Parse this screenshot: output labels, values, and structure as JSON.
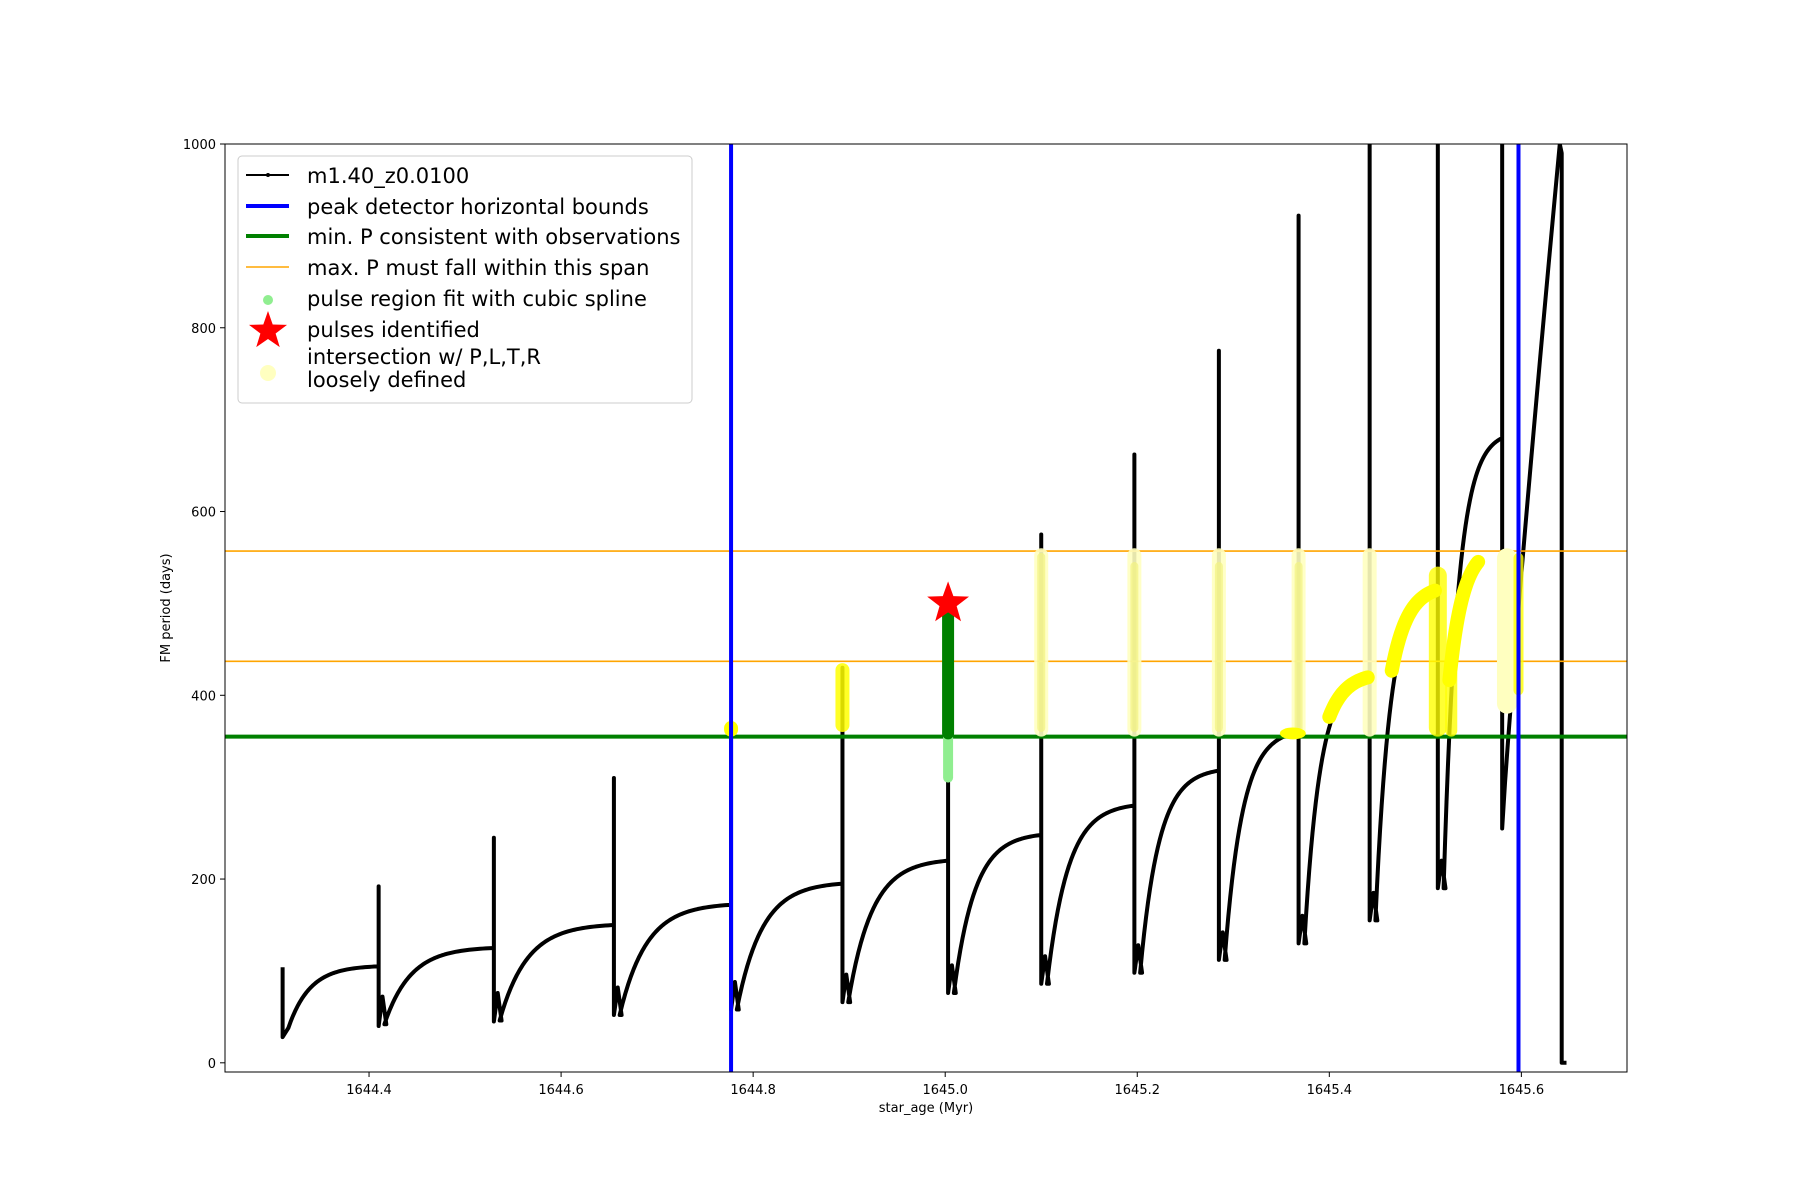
{
  "chart_data": {
    "type": "line",
    "title": "",
    "xlabel": "star_age (Myr)",
    "ylabel": "FM period (days)",
    "xlim": [
      1644.25,
      1645.71
    ],
    "ylim": [
      -10,
      1000
    ],
    "x_ticks": [
      "1644.4",
      "1644.6",
      "1644.8",
      "1645.0",
      "1645.2",
      "1645.4",
      "1645.6"
    ],
    "y_ticks": [
      "0",
      "200",
      "400",
      "600",
      "800",
      "1000"
    ],
    "grid": false,
    "legend_position": "upper-left",
    "legend": [
      {
        "key": "track",
        "label": "m1.40_z0.0100",
        "color": "#000000"
      },
      {
        "key": "bounds",
        "label": "peak detector horizontal bounds",
        "color": "#0000ff"
      },
      {
        "key": "minp",
        "label": "min. P consistent with observations",
        "color": "#008000"
      },
      {
        "key": "maxp",
        "label": "max. P must fall within this span",
        "color": "#ffa500"
      },
      {
        "key": "spline",
        "label": "pulse region fit with cubic spline",
        "color": "#90ee90"
      },
      {
        "key": "pulses",
        "label": "pulses identified",
        "color": "#ff0000"
      },
      {
        "key": "loose",
        "label": "intersection w/ P,L,T,R\nloosely defined",
        "color": "#ffffc0"
      }
    ],
    "vertical_bounds": [
      1644.777,
      1645.597
    ],
    "min_period": 355,
    "max_period_span": [
      437,
      557
    ],
    "pulse_star": {
      "x": 1645.003,
      "y": 500
    },
    "track_cycles": [
      {
        "start": 1644.31,
        "end": 1644.41,
        "p0": 38,
        "p1": 105,
        "spike": 192,
        "dip": 40
      },
      {
        "start": 1644.41,
        "end": 1644.53,
        "p0": 42,
        "p1": 125,
        "spike": 245,
        "dip": 45
      },
      {
        "start": 1644.53,
        "end": 1644.655,
        "p0": 46,
        "p1": 150,
        "spike": 310,
        "dip": 52
      },
      {
        "start": 1644.655,
        "end": 1644.777,
        "p0": 52,
        "p1": 172,
        "spike": 365,
        "dip": 58
      },
      {
        "start": 1644.777,
        "end": 1644.893,
        "p0": 58,
        "p1": 195,
        "spike": 430,
        "dip": 66
      },
      {
        "start": 1644.893,
        "end": 1645.003,
        "p0": 66,
        "p1": 220,
        "spike": 500,
        "dip": 76
      },
      {
        "start": 1645.003,
        "end": 1645.1,
        "p0": 76,
        "p1": 248,
        "spike": 575,
        "dip": 86
      },
      {
        "start": 1645.1,
        "end": 1645.197,
        "p0": 86,
        "p1": 280,
        "spike": 662,
        "dip": 98
      },
      {
        "start": 1645.197,
        "end": 1645.285,
        "p0": 98,
        "p1": 318,
        "spike": 775,
        "dip": 112
      },
      {
        "start": 1645.285,
        "end": 1645.368,
        "p0": 112,
        "p1": 360,
        "spike": 922,
        "dip": 130
      },
      {
        "start": 1645.368,
        "end": 1645.442,
        "p0": 130,
        "p1": 420,
        "spike": 1000,
        "dip": 155
      },
      {
        "start": 1645.442,
        "end": 1645.513,
        "p0": 155,
        "p1": 515,
        "spike": 1000,
        "dip": 190
      },
      {
        "start": 1645.513,
        "end": 1645.58,
        "p0": 190,
        "p1": 680,
        "spike": 1000,
        "dip": 255
      }
    ],
    "final_rise": {
      "start": 1645.58,
      "end": 1645.64,
      "p0": 255,
      "p1": 1000
    },
    "end_drop": {
      "x": 1645.647,
      "y": 0
    }
  }
}
